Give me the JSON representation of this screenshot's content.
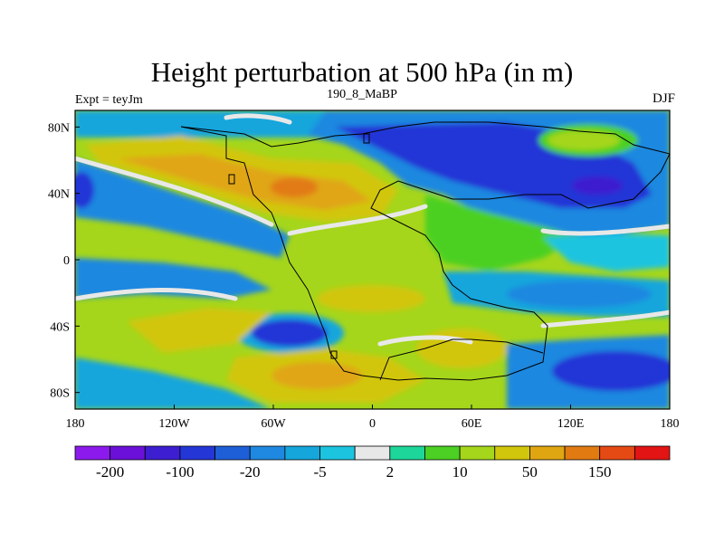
{
  "title": "Height perturbation at 500 hPa (in m)",
  "subtitle": "190_8_MaBP",
  "expt_label": "Expt = teyJm",
  "season": "DJF",
  "map": {
    "lon_ticks": [
      "180",
      "120W",
      "60W",
      "0",
      "60E",
      "120E",
      "180"
    ],
    "lat_ticks": [
      "80N",
      "40N",
      "0",
      "40S",
      "80S"
    ]
  },
  "colorbar": {
    "colors": [
      "#8c1aec",
      "#6b10d8",
      "#3d1ed0",
      "#2436d6",
      "#1e5fd8",
      "#1f88e0",
      "#15a6dc",
      "#1cc4e0",
      "#e8e8e8",
      "#1dd79a",
      "#4bd023",
      "#a5d61b",
      "#d2c60c",
      "#e0a612",
      "#e27a12",
      "#e64a14",
      "#e21414"
    ],
    "labels": [
      "-200",
      "-100",
      "-20",
      "-5",
      "2",
      "10",
      "50",
      "150"
    ]
  },
  "field_colors": {
    "ocean_blue": "#1f88e0",
    "deep_blue": "#2436d6",
    "cyan": "#15a6dc",
    "light_cyan": "#1cc4e0",
    "white": "#e8e8e8",
    "green": "#4bd023",
    "yellow_green": "#a5d61b",
    "yellow": "#d2c60c",
    "orange": "#e0a612",
    "dark_orange": "#e27a12",
    "purple": "#3d1ed0"
  }
}
